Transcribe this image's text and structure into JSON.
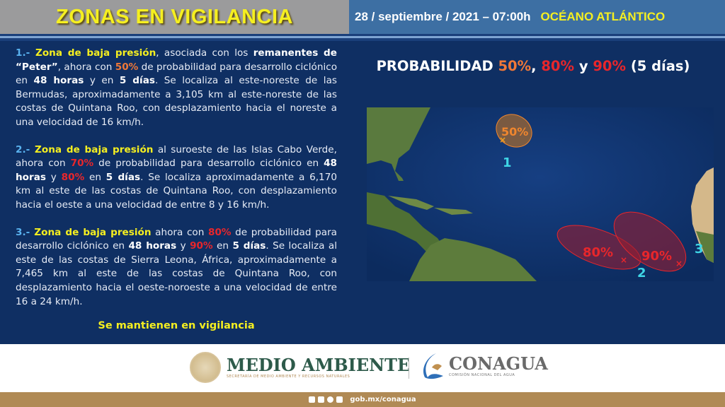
{
  "header": {
    "title": "ZONAS EN VIGILANCIA",
    "date": "28 / septiembre / 2021 – 07:00h",
    "region": "OCÉANO ATLÁNTICO"
  },
  "zones": [
    {
      "segments": [
        {
          "t": "1.- ",
          "s": "num"
        },
        {
          "t": "Zona de baja presión",
          "s": "yel"
        },
        {
          "t": ", asociada con los ",
          "s": ""
        },
        {
          "t": "remanentes de “Peter”",
          "s": "bold"
        },
        {
          "t": ", ahora con ",
          "s": ""
        },
        {
          "t": "50%",
          "s": "org"
        },
        {
          "t": " de probabilidad para desarrollo ciclónico en ",
          "s": ""
        },
        {
          "t": "48 horas",
          "s": "bold"
        },
        {
          "t": " y en ",
          "s": ""
        },
        {
          "t": "5 días",
          "s": "bold"
        },
        {
          "t": ". Se localiza al este-noreste de las Bermudas, aproximadamente a 3,105 km al este-noreste de las costas de Quintana Roo, con desplazamiento hacia el noreste a una velocidad de 16 km/h.",
          "s": ""
        }
      ]
    },
    {
      "segments": [
        {
          "t": "2.- ",
          "s": "num"
        },
        {
          "t": "Zona de baja presión",
          "s": "yel"
        },
        {
          "t": " al suroeste de las Islas Cabo Verde, ahora con ",
          "s": ""
        },
        {
          "t": "70%",
          "s": "red"
        },
        {
          "t": " de probabilidad para desarrollo ciclónico en ",
          "s": ""
        },
        {
          "t": "48 horas",
          "s": "bold"
        },
        {
          "t": " y ",
          "s": ""
        },
        {
          "t": "80%",
          "s": "red"
        },
        {
          "t": " en ",
          "s": ""
        },
        {
          "t": "5 días",
          "s": "bold"
        },
        {
          "t": ". Se localiza aproximadamente a 6,170 km al este de las costas de Quintana Roo, con desplazamiento hacia el oeste a una velocidad de entre 8 y 16 km/h.",
          "s": ""
        }
      ]
    },
    {
      "segments": [
        {
          "t": "3.- ",
          "s": "num"
        },
        {
          "t": "Zona de baja presión",
          "s": "yel"
        },
        {
          "t": " ahora con ",
          "s": ""
        },
        {
          "t": "80%",
          "s": "red"
        },
        {
          "t": " de probabilidad para desarrollo ciclónico en ",
          "s": ""
        },
        {
          "t": "48 horas",
          "s": "bold"
        },
        {
          "t": " y ",
          "s": ""
        },
        {
          "t": "90%",
          "s": "red"
        },
        {
          "t": " en ",
          "s": ""
        },
        {
          "t": "5 días",
          "s": "bold"
        },
        {
          "t": ". Se localiza al este de las costas de Sierra Leona, África, aproximadamente a 7,465 km al este de las costas de Quintana Roo, con desplazamiento hacia el oeste-noroeste a una velocidad de entre 16 a 24 km/h.",
          "s": ""
        }
      ]
    }
  ],
  "status": "Se mantienen en vigilancia",
  "probability": {
    "prefix": "PROBABILIDAD ",
    "p1": "50%",
    "sep1": ", ",
    "p2": "80%",
    "sep2": " y ",
    "p3": "90%",
    "suffix": " (5 días)"
  },
  "map": {
    "zone1": {
      "label": "1",
      "pct": "50%",
      "color": "#f0862e"
    },
    "zone2": {
      "label": "2",
      "pct": "80%",
      "color": "#e8262b"
    },
    "zone3": {
      "label": "3",
      "pct": "90%",
      "color": "#e8262b"
    },
    "label_color": "#3fd6e6"
  },
  "footer": {
    "ma_title": "MEDIO AMBIENTE",
    "ma_sub": "SECRETARÍA DE MEDIO AMBIENTE Y RECURSOS NATURALES",
    "cg_title": "CONAGUA",
    "cg_sub": "COMISIÓN NACIONAL DEL AGUA",
    "social": [
      "facebook-icon",
      "twitter-icon",
      "instagram-icon",
      "youtube-icon"
    ],
    "url": "gob.mx/conagua"
  }
}
